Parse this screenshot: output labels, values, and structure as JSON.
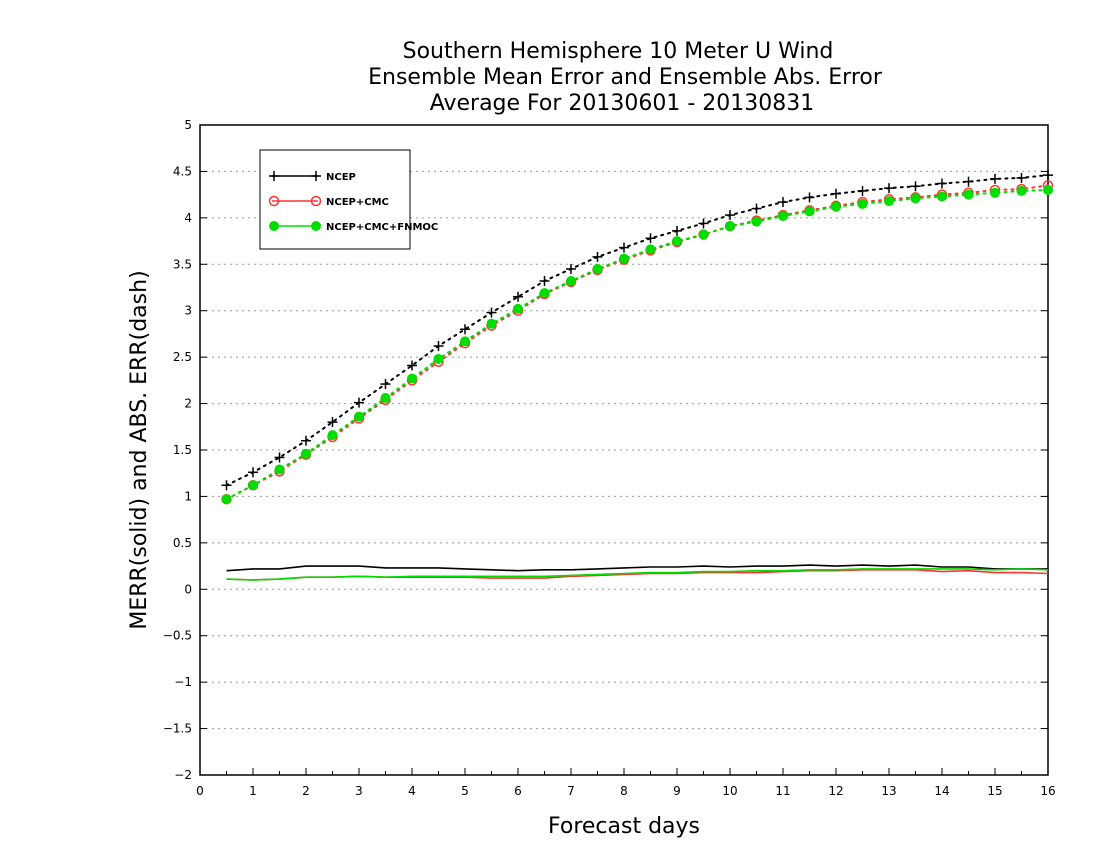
{
  "chart_data": {
    "type": "line",
    "title_lines": [
      "Southern Hemisphere 10 Meter U Wind",
      "Ensemble Mean Error and Ensemble Abs. Error",
      "Average For 20130601 - 20130831"
    ],
    "xlabel": "Forecast days",
    "ylabel": "MERR(solid) and ABS. ERR(dash)",
    "xlim": [
      0,
      16
    ],
    "ylim": [
      -2,
      5
    ],
    "x_ticks": [
      0,
      1,
      2,
      3,
      4,
      5,
      6,
      7,
      8,
      9,
      10,
      11,
      12,
      13,
      14,
      15,
      16
    ],
    "y_ticks": [
      -2,
      -1.5,
      -1,
      -0.5,
      0,
      0.5,
      1,
      1.5,
      2,
      2.5,
      3,
      3.5,
      4,
      4.5,
      5
    ],
    "x_tick_labels": [
      "0",
      "1",
      "2",
      "3",
      "4",
      "5",
      "6",
      "7",
      "8",
      "9",
      "10",
      "11",
      "12",
      "13",
      "14",
      "15",
      "16"
    ],
    "y_tick_labels": [
      "−2",
      "−1.5",
      "−1",
      "−0.5",
      "0",
      "0.5",
      "1",
      "1.5",
      "2",
      "2.5",
      "3",
      "3.5",
      "4",
      "4.5",
      "5"
    ],
    "grid": "horizontal dotted",
    "legend_position": "top-left",
    "x": [
      0.5,
      1,
      1.5,
      2,
      2.5,
      3,
      3.5,
      4,
      4.5,
      5,
      5.5,
      6,
      6.5,
      7,
      7.5,
      8,
      8.5,
      9,
      9.5,
      10,
      10.5,
      11,
      11.5,
      12,
      12.5,
      13,
      13.5,
      14,
      14.5,
      15,
      15.5,
      16
    ],
    "series": [
      {
        "name": "NCEP",
        "color": "#000000",
        "marker": "plus",
        "abs_err": [
          1.12,
          1.26,
          1.42,
          1.6,
          1.8,
          2.01,
          2.21,
          2.41,
          2.62,
          2.8,
          2.98,
          3.15,
          3.32,
          3.45,
          3.58,
          3.68,
          3.78,
          3.86,
          3.94,
          4.03,
          4.1,
          4.17,
          4.22,
          4.26,
          4.29,
          4.32,
          4.34,
          4.37,
          4.39,
          4.42,
          4.43,
          4.46
        ],
        "mean_err": [
          0.2,
          0.22,
          0.22,
          0.25,
          0.25,
          0.25,
          0.23,
          0.23,
          0.23,
          0.22,
          0.21,
          0.2,
          0.21,
          0.21,
          0.22,
          0.23,
          0.24,
          0.24,
          0.25,
          0.24,
          0.25,
          0.25,
          0.26,
          0.25,
          0.26,
          0.25,
          0.26,
          0.24,
          0.24,
          0.22,
          0.22,
          0.22
        ]
      },
      {
        "name": "NCEP+CMC",
        "color": "#ff3333",
        "marker": "open-circle",
        "abs_err": [
          0.97,
          1.12,
          1.27,
          1.45,
          1.64,
          1.84,
          2.04,
          2.25,
          2.45,
          2.65,
          2.84,
          3.0,
          3.18,
          3.31,
          3.44,
          3.55,
          3.65,
          3.74,
          3.82,
          3.91,
          3.97,
          4.03,
          4.08,
          4.13,
          4.17,
          4.2,
          4.22,
          4.25,
          4.27,
          4.3,
          4.31,
          4.35
        ],
        "mean_err": [
          0.11,
          0.1,
          0.11,
          0.13,
          0.13,
          0.14,
          0.13,
          0.13,
          0.13,
          0.13,
          0.12,
          0.12,
          0.12,
          0.14,
          0.15,
          0.16,
          0.17,
          0.17,
          0.18,
          0.18,
          0.18,
          0.19,
          0.2,
          0.2,
          0.21,
          0.21,
          0.21,
          0.19,
          0.2,
          0.18,
          0.18,
          0.17
        ]
      },
      {
        "name": "NCEP+CMC+FNMOC",
        "color": "#00dd00",
        "marker": "filled-circle",
        "abs_err": [
          0.97,
          1.12,
          1.29,
          1.46,
          1.66,
          1.86,
          2.06,
          2.27,
          2.48,
          2.67,
          2.86,
          3.02,
          3.19,
          3.32,
          3.45,
          3.56,
          3.66,
          3.75,
          3.82,
          3.91,
          3.96,
          4.02,
          4.07,
          4.12,
          4.15,
          4.18,
          4.21,
          4.23,
          4.25,
          4.27,
          4.29,
          4.3
        ],
        "mean_err": [
          0.11,
          0.1,
          0.11,
          0.13,
          0.13,
          0.14,
          0.13,
          0.14,
          0.14,
          0.14,
          0.14,
          0.14,
          0.14,
          0.15,
          0.16,
          0.17,
          0.18,
          0.18,
          0.19,
          0.19,
          0.2,
          0.2,
          0.21,
          0.21,
          0.22,
          0.22,
          0.22,
          0.22,
          0.22,
          0.21,
          0.22,
          0.21
        ]
      }
    ]
  }
}
